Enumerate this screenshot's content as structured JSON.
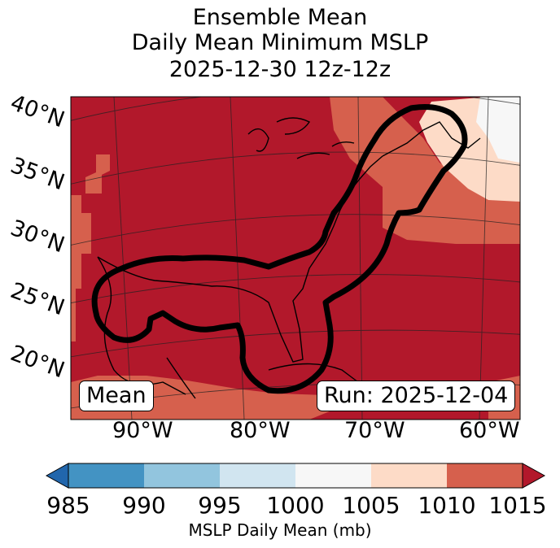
{
  "title": {
    "line1": "Ensemble Mean",
    "line2": "Daily Mean Minimum MSLP",
    "line3": "2025-12-30 12z-12z"
  },
  "map": {
    "lat_labels": [
      "40°N",
      "35°N",
      "30°N",
      "25°N",
      "20°N"
    ],
    "lon_labels": [
      "90°W",
      "80°W",
      "70°W",
      "60°W"
    ],
    "annotation_left": "Mean",
    "annotation_right": "Run: 2025-12-04",
    "contour_description": "ensemble probability outline (black)"
  },
  "colorbar": {
    "label": "MSLP Daily Mean (mb)",
    "ticks": [
      "985",
      "990",
      "995",
      "1000",
      "1005",
      "1010",
      "1015"
    ],
    "bins": [
      {
        "range": "985-990",
        "color": "#4393c3"
      },
      {
        "range": "990-995",
        "color": "#92c5de"
      },
      {
        "range": "995-1000",
        "color": "#d1e5f0"
      },
      {
        "range": "1000-1005",
        "color": "#f7f7f7"
      },
      {
        "range": "1005-1010",
        "color": "#fddbc7"
      },
      {
        "range": "1010-1015",
        "color": "#d6604d"
      }
    ],
    "under_color": "#2166ac",
    "over_color": "#b2182b"
  },
  "colors": {
    "dominant": "#b2182b",
    "mid": "#d6604d",
    "light": "#fddbc7",
    "white": "#f7f7f7"
  }
}
